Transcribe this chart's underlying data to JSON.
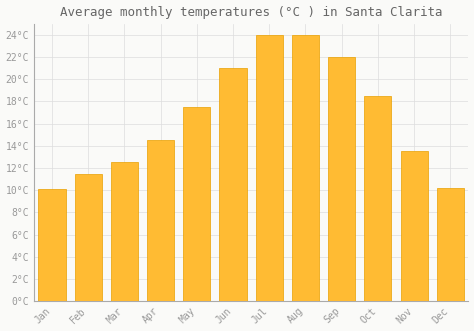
{
  "title": "Average monthly temperatures (°C ) in Santa Clarita",
  "months": [
    "Jan",
    "Feb",
    "Mar",
    "Apr",
    "May",
    "Jun",
    "Jul",
    "Aug",
    "Sep",
    "Oct",
    "Nov",
    "Dec"
  ],
  "values": [
    10.1,
    11.5,
    12.5,
    14.5,
    17.5,
    21.0,
    24.0,
    24.0,
    22.0,
    18.5,
    13.5,
    10.2
  ],
  "bar_color": "#FFBB33",
  "bar_edge_color": "#E8A000",
  "background_color": "#FAFAF8",
  "grid_color": "#DDDDDD",
  "ylim": [
    0,
    25
  ],
  "title_fontsize": 9,
  "tick_fontsize": 7,
  "tick_color": "#999999",
  "title_color": "#666666",
  "left_spine_color": "#AAAAAA",
  "bar_width": 0.75
}
